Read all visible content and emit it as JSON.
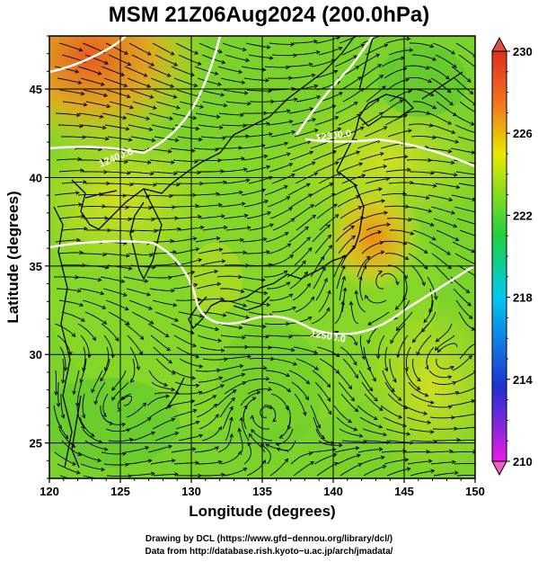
{
  "title": "MSM 21Z06Aug2024 (200.0hPa)",
  "xaxis": {
    "label": "Longitude (degrees)",
    "range": [
      120,
      150
    ],
    "ticks": [
      "120",
      "125",
      "130",
      "135",
      "140",
      "145",
      "150"
    ]
  },
  "yaxis": {
    "label": "Latitude  (degrees)",
    "range": [
      23,
      48
    ],
    "ticks": [
      "25",
      "30",
      "35",
      "40",
      "45"
    ]
  },
  "colorbar": {
    "range": [
      210,
      230
    ],
    "ticks": [
      "210",
      "214",
      "218",
      "222",
      "226",
      "230"
    ],
    "colors": [
      "#e61ee6",
      "#2030d0",
      "#00c8f0",
      "#20d040",
      "#e8e800",
      "#f07020",
      "#e03020"
    ]
  },
  "contours": [
    "12400.0",
    "12300.0",
    "12500.0"
  ],
  "credits": [
    "Drawing by DCL (https://www.gfd−dennou.org/library/dcl/)",
    "Data from http://database.rish.kyoto−u.ac.jp/arch/jmadata/"
  ],
  "chart_data": {
    "type": "heatmap",
    "title": "MSM 21Z06Aug2024 (200.0hPa)",
    "xlabel": "Longitude (degrees)",
    "ylabel": "Latitude  (degrees)",
    "xlim": [
      120,
      150
    ],
    "ylim": [
      23,
      48
    ],
    "colorbar_range": [
      210,
      230
    ],
    "field_features": [
      {
        "lon": 122,
        "lat": 46,
        "value": 228
      },
      {
        "lon": 124,
        "lat": 42,
        "value": 226
      },
      {
        "lon": 143,
        "lat": 37,
        "value": 227
      },
      {
        "lon": 140,
        "lat": 33,
        "value": 223
      },
      {
        "lon": 130,
        "lat": 30,
        "value": 222
      },
      {
        "lon": 145,
        "lat": 45,
        "value": 222
      },
      {
        "lon": 125,
        "lat": 27,
        "value": 222
      },
      {
        "lon": 148,
        "lat": 28,
        "value": 223
      }
    ],
    "contour_labels": [
      {
        "text": "12400.0",
        "lon": 124,
        "lat": 41
      },
      {
        "text": "12300.0",
        "lon": 140,
        "lat": 42.3
      },
      {
        "text": "12500.0",
        "lon": 140,
        "lat": 31.5
      }
    ]
  }
}
